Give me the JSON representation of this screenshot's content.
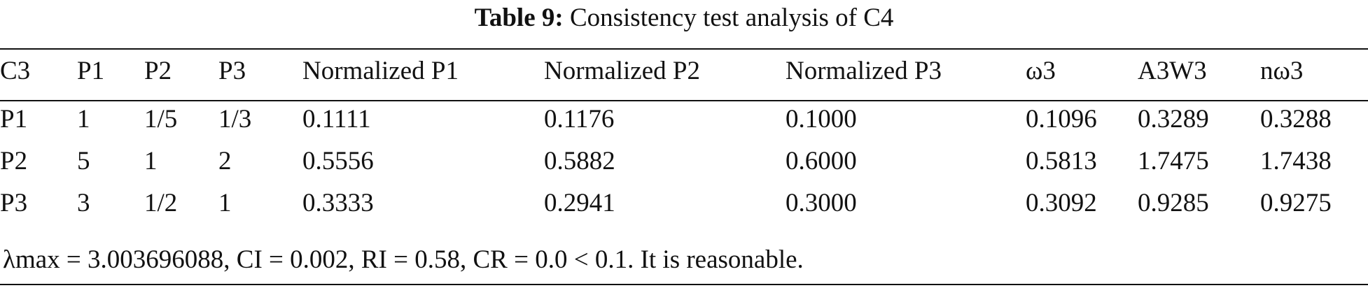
{
  "caption": {
    "label": "Table 9:",
    "title": "Consistency test analysis of C4"
  },
  "table": {
    "headers": [
      "C3",
      "P1",
      "P2",
      "P3",
      "Normalized P1",
      "Normalized P2",
      "Normalized P3",
      "ω3",
      "A3W3",
      "nω3"
    ],
    "rows": [
      [
        "P1",
        "1",
        "1/5",
        "1/3",
        "0.1111",
        "0.1176",
        "0.1000",
        "0.1096",
        "0.3289",
        "0.3288"
      ],
      [
        "P2",
        "5",
        "1",
        "2",
        "0.5556",
        "0.5882",
        "0.6000",
        "0.5813",
        "1.7475",
        "1.7438"
      ],
      [
        "P3",
        "3",
        "1/2",
        "1",
        "0.3333",
        "0.2941",
        "0.3000",
        "0.3092",
        "0.9285",
        "0.9275"
      ]
    ]
  },
  "note": "λmax = 3.003696088, CI = 0.002, RI = 0.58, CR = 0.0 < 0.1. It is reasonable."
}
